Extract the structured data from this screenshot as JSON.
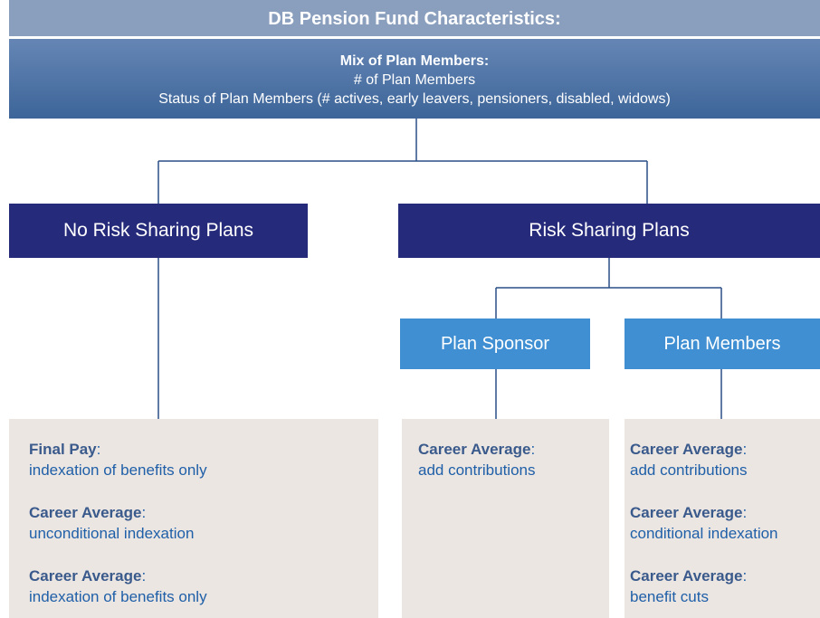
{
  "header": {
    "title": "DB Pension Fund Characteristics:"
  },
  "mix": {
    "heading": "Mix of Plan Members:",
    "lines": [
      "# of Plan Members",
      "Status of Plan Members (# actives, early leavers, pensioners, disabled, widows)"
    ]
  },
  "left": {
    "label": "No Risk Sharing Plans",
    "items": [
      {
        "term": "Final Pay",
        "punct": ":",
        "text": "indexation of benefits only"
      },
      {
        "term": "Career Average",
        "punct": ":",
        "text": "unconditional indexation"
      },
      {
        "term": "Career Average",
        "punct": ":",
        "text": "indexation of benefits only"
      }
    ]
  },
  "right": {
    "label": "Risk Sharing Plans",
    "sponsor": {
      "label": "Plan Sponsor",
      "items": [
        {
          "term": "Career Average",
          "punct": ":",
          "text": "add contributions"
        }
      ]
    },
    "members": {
      "label": "Plan Members",
      "items": [
        {
          "term": "Career Average",
          "punct": ":",
          "text": "add contributions"
        },
        {
          "term": "Career Average",
          "punct": ":",
          "text": "conditional indexation"
        },
        {
          "term": "Career Average",
          "punct": ":",
          "text": "benefit cuts"
        }
      ]
    }
  }
}
